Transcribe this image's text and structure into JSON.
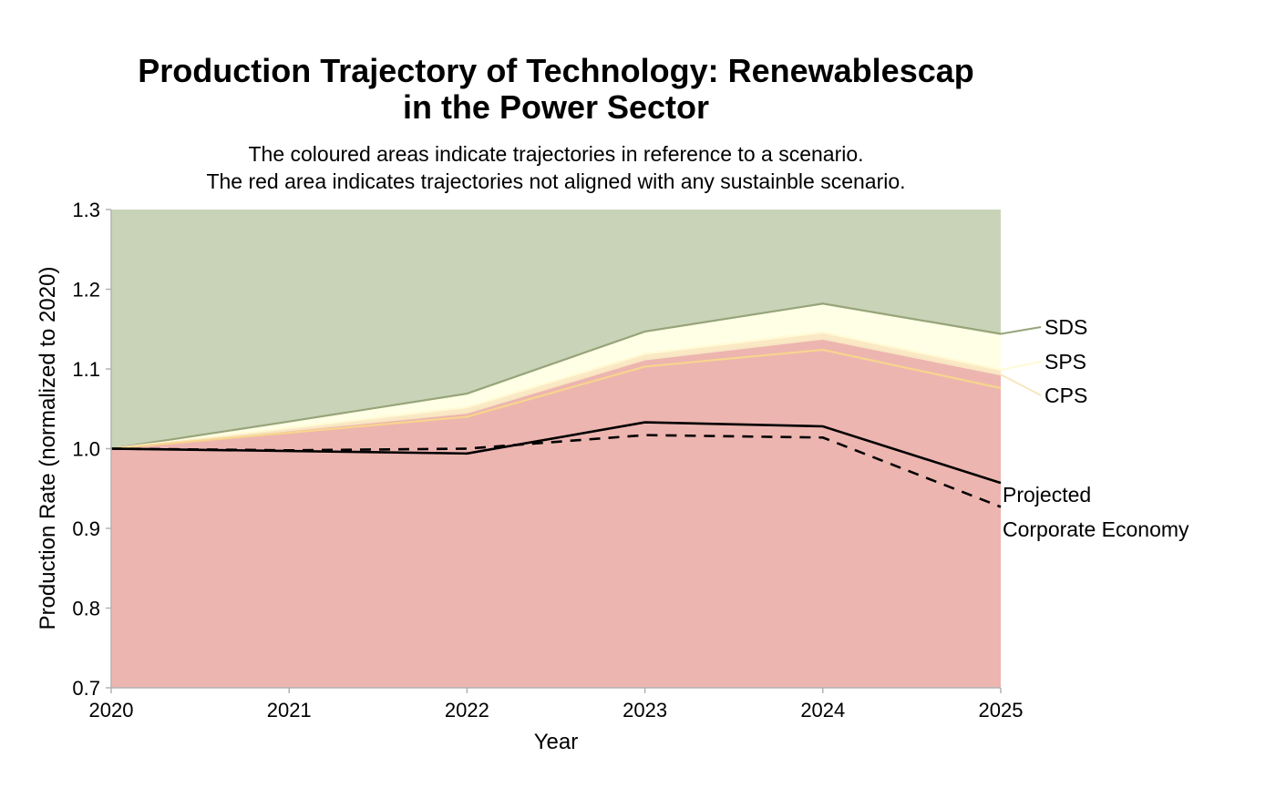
{
  "chart_data": {
    "type": "area",
    "title_lines": [
      "Production Trajectory of Technology: Renewablescap",
      "in the Power Sector"
    ],
    "subtitle_lines": [
      "The coloured areas indicate trajectories in reference to a scenario.",
      "The red area indicates trajectories not aligned with any sustainble scenario."
    ],
    "xlabel": "Year",
    "ylabel": "Production Rate (normalized to 2020)",
    "xlim": [
      2020,
      2025
    ],
    "ylim": [
      0.7,
      1.3
    ],
    "x": [
      2020,
      2021,
      2022,
      2023,
      2024,
      2025
    ],
    "x_ticks": [
      "2020",
      "2021",
      "2022",
      "2023",
      "2024",
      "2025"
    ],
    "y_ticks": [
      "0.7",
      "0.8",
      "0.9",
      "1.0",
      "1.1",
      "1.2",
      "1.3"
    ],
    "grid": false,
    "areas": [
      {
        "label": "SDS",
        "values": [
          1.0,
          1.034,
          1.069,
          1.147,
          1.182,
          1.144
        ],
        "fill": "#c9d3b8",
        "line": "#97a47a"
      },
      {
        "label": "SPS",
        "values": [
          1.0,
          1.026,
          1.052,
          1.119,
          1.146,
          1.099
        ],
        "fill": "#ffffe6",
        "line": "#fffad4"
      },
      {
        "label": "CPS",
        "values": [
          1.0,
          1.023,
          1.045,
          1.112,
          1.138,
          1.093
        ],
        "fill": "#fbe8c4",
        "line": "#f8e6c2"
      },
      {
        "label": "",
        "values": [
          1.0,
          1.02,
          1.04,
          1.103,
          1.124,
          1.076
        ],
        "fill": "#edb5b0",
        "line": "#f7d58e"
      }
    ],
    "series": [
      {
        "name": "Projected",
        "values": [
          1.0,
          0.997,
          0.994,
          1.033,
          1.028,
          0.957
        ],
        "style": "solid",
        "color": "#000000"
      },
      {
        "name": "Corporate Economy",
        "values": [
          1.0,
          0.998,
          1.0,
          1.017,
          1.014,
          0.927
        ],
        "style": "dashed",
        "color": "#000000"
      }
    ],
    "area_top": 1.3,
    "axis_color": "#b3b3b3"
  }
}
